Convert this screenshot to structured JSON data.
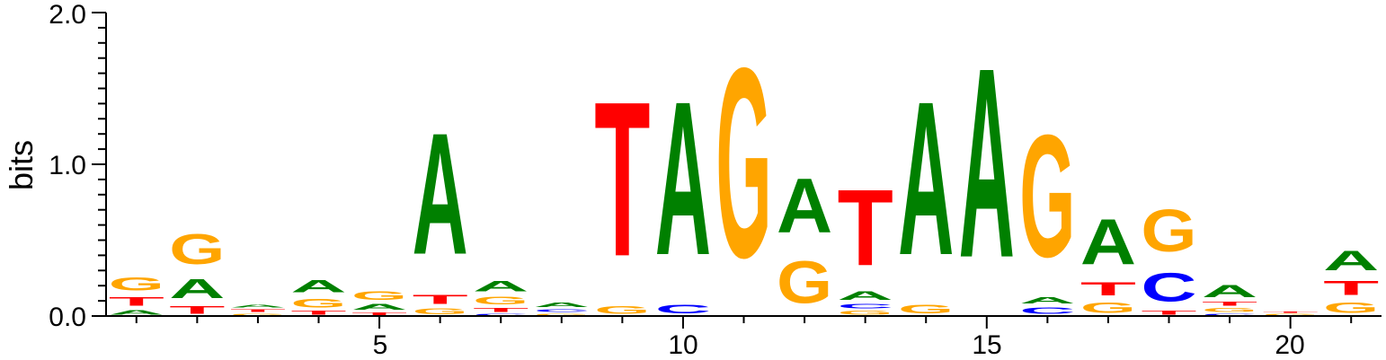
{
  "chart_data": {
    "type": "sequence-logo",
    "ylabel": "bits",
    "ylim": [
      0,
      2.0
    ],
    "y_ticks": [
      "0.0",
      "1.0",
      "2.0"
    ],
    "x_ticks": [
      "5",
      "10",
      "15",
      "20"
    ],
    "x_tick_positions": [
      5,
      10,
      15,
      20
    ],
    "x_range": [
      0.5,
      21.5
    ],
    "colors": {
      "A": "#008000",
      "C": "#0000ff",
      "G": "#ffa500",
      "T": "#ff0000"
    },
    "positions": [
      {
        "position": 1,
        "letters": [
          [
            "A",
            0.05
          ],
          [
            "T",
            0.09
          ],
          [
            "G",
            0.14
          ]
        ]
      },
      {
        "position": 2,
        "letters": [
          [
            "T",
            0.08
          ],
          [
            "A",
            0.2
          ],
          [
            "G",
            0.32
          ]
        ]
      },
      {
        "position": 3,
        "letters": [
          [
            "G",
            0.02
          ],
          [
            "T",
            0.03
          ],
          [
            "A",
            0.03
          ]
        ]
      },
      {
        "position": 4,
        "letters": [
          [
            "T",
            0.04
          ],
          [
            "G",
            0.09
          ],
          [
            "A",
            0.13
          ]
        ]
      },
      {
        "position": 5,
        "letters": [
          [
            "T",
            0.03
          ],
          [
            "A",
            0.06
          ],
          [
            "G",
            0.09
          ]
        ]
      },
      {
        "position": 6,
        "letters": [
          [
            "G",
            0.06
          ],
          [
            "T",
            0.1
          ],
          [
            "A",
            1.28
          ]
        ]
      },
      {
        "position": 7,
        "letters": [
          [
            "C",
            0.02
          ],
          [
            "T",
            0.04
          ],
          [
            "G",
            0.08
          ],
          [
            "A",
            0.11
          ]
        ]
      },
      {
        "position": 8,
        "letters": [
          [
            "G",
            0.02
          ],
          [
            "C",
            0.03
          ],
          [
            "A",
            0.05
          ]
        ]
      },
      {
        "position": 9,
        "letters": [
          [
            "G",
            0.08
          ],
          [
            "T",
            1.63
          ]
        ]
      },
      {
        "position": 10,
        "letters": [
          [
            "C",
            0.09
          ],
          [
            "A",
            1.62
          ]
        ]
      },
      {
        "position": 11,
        "letters": [
          [
            "G",
            2.0
          ]
        ]
      },
      {
        "position": 12,
        "letters": [
          [
            "G",
            0.44
          ],
          [
            "A",
            0.57
          ]
        ]
      },
      {
        "position": 13,
        "letters": [
          [
            "G",
            0.04
          ],
          [
            "C",
            0.05
          ],
          [
            "A",
            0.09
          ],
          [
            "T",
            0.8
          ]
        ]
      },
      {
        "position": 14,
        "letters": [
          [
            "G",
            0.09
          ],
          [
            "A",
            1.62
          ]
        ]
      },
      {
        "position": 15,
        "letters": [
          [
            "A",
            2.0
          ]
        ]
      },
      {
        "position": 16,
        "letters": [
          [
            "C",
            0.07
          ],
          [
            "A",
            0.07
          ],
          [
            "G",
            1.29
          ]
        ]
      },
      {
        "position": 17,
        "letters": [
          [
            "G",
            0.11
          ],
          [
            "T",
            0.14
          ],
          [
            "A",
            0.48
          ]
        ]
      },
      {
        "position": 18,
        "letters": [
          [
            "T",
            0.04
          ],
          [
            "C",
            0.3
          ],
          [
            "G",
            0.44
          ]
        ]
      },
      {
        "position": 19,
        "letters": [
          [
            "C",
            0.02
          ],
          [
            "G",
            0.04
          ],
          [
            "T",
            0.04
          ],
          [
            "A",
            0.13
          ]
        ]
      },
      {
        "position": 20,
        "letters": [
          [
            "G",
            0.02
          ],
          [
            "T",
            0.01
          ]
        ]
      },
      {
        "position": 21,
        "letters": [
          [
            "G",
            0.11
          ],
          [
            "T",
            0.15
          ],
          [
            "A",
            0.21
          ]
        ]
      }
    ]
  }
}
